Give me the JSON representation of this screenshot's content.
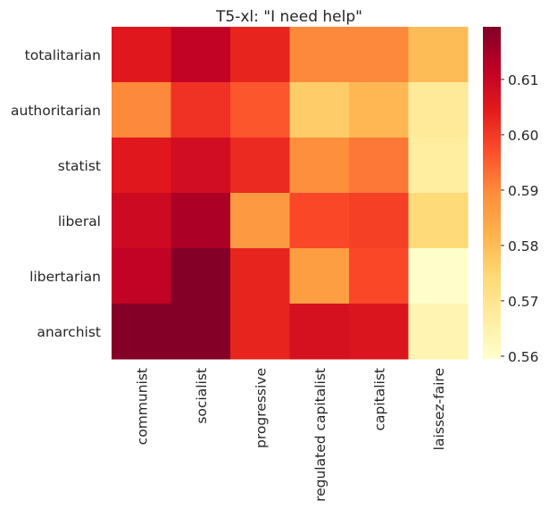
{
  "chart_data": {
    "type": "heatmap",
    "title": "T5-xl: \"I need help\"",
    "xlabel": "",
    "ylabel": "",
    "x_categories": [
      "communist",
      "socialist",
      "progressive",
      "regulated capitalist",
      "capitalist",
      "laissez-faire"
    ],
    "y_categories": [
      "totalitarian",
      "authoritarian",
      "statist",
      "liberal",
      "libertarian",
      "anarchist"
    ],
    "values": [
      [
        0.605,
        0.611,
        0.603,
        0.59,
        0.59,
        0.58
      ],
      [
        0.59,
        0.601,
        0.596,
        0.577,
        0.581,
        0.568
      ],
      [
        0.605,
        0.608,
        0.602,
        0.589,
        0.592,
        0.567
      ],
      [
        0.609,
        0.614,
        0.587,
        0.598,
        0.599,
        0.574
      ],
      [
        0.611,
        0.619,
        0.603,
        0.586,
        0.598,
        0.559
      ],
      [
        0.619,
        0.619,
        0.603,
        0.607,
        0.606,
        0.564
      ]
    ],
    "colormap": "YlOrRd",
    "colorbar": {
      "vmin": 0.5595,
      "vmax": 0.6195,
      "ticks": [
        "0.56",
        "0.57",
        "0.58",
        "0.59",
        "0.60",
        "0.61"
      ]
    },
    "grid": false
  }
}
